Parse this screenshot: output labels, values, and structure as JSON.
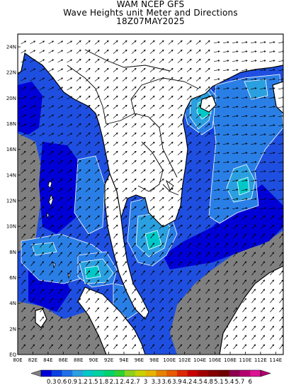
{
  "title": {
    "line1": "WAM NCEP GFS",
    "line2": "Wave Heights unit Meter and Directions",
    "line3": "18Z07MAY2025"
  },
  "map": {
    "lon_range": [
      80,
      115
    ],
    "lat_range": [
      0,
      25
    ],
    "x_ticks": [
      "80E",
      "82E",
      "84E",
      "86E",
      "88E",
      "90E",
      "92E",
      "94E",
      "96E",
      "98E",
      "100E",
      "102E",
      "104E",
      "106E",
      "108E",
      "110E",
      "112E",
      "114E"
    ],
    "y_ticks": [
      "EQ",
      "2N",
      "4N",
      "6N",
      "8N",
      "10N",
      "12N",
      "14N",
      "16N",
      "18N",
      "20N",
      "22N",
      "24N"
    ],
    "colors": {
      "land": "#ffffff",
      "no_data": "#808080",
      "coast": "#000000",
      "contour": "#ffffff"
    }
  },
  "colorbar": {
    "labels": [
      "0.3",
      "0.6",
      "0.9",
      "1.2",
      "1.5",
      "1.8",
      "2.1",
      "2.4",
      "2.7",
      "3",
      "3.3",
      "3.6",
      "3.9",
      "4.2",
      "4.5",
      "4.8",
      "5.1",
      "5.4",
      "5.7",
      "6"
    ],
    "colors": [
      "#0000d6",
      "#0a3fe0",
      "#1f6fe6",
      "#2aa0e0",
      "#00c8c8",
      "#00d2a0",
      "#00d26e",
      "#2ed232",
      "#8ed21e",
      "#c8d200",
      "#e6b400",
      "#e68200",
      "#e65a00",
      "#dc2800",
      "#c80000",
      "#a00000",
      "#820000",
      "#6e0000",
      "#8c0050",
      "#b4006e",
      "#dc1496"
    ]
  },
  "legend": {
    "low": "0.3",
    "high": "6"
  }
}
